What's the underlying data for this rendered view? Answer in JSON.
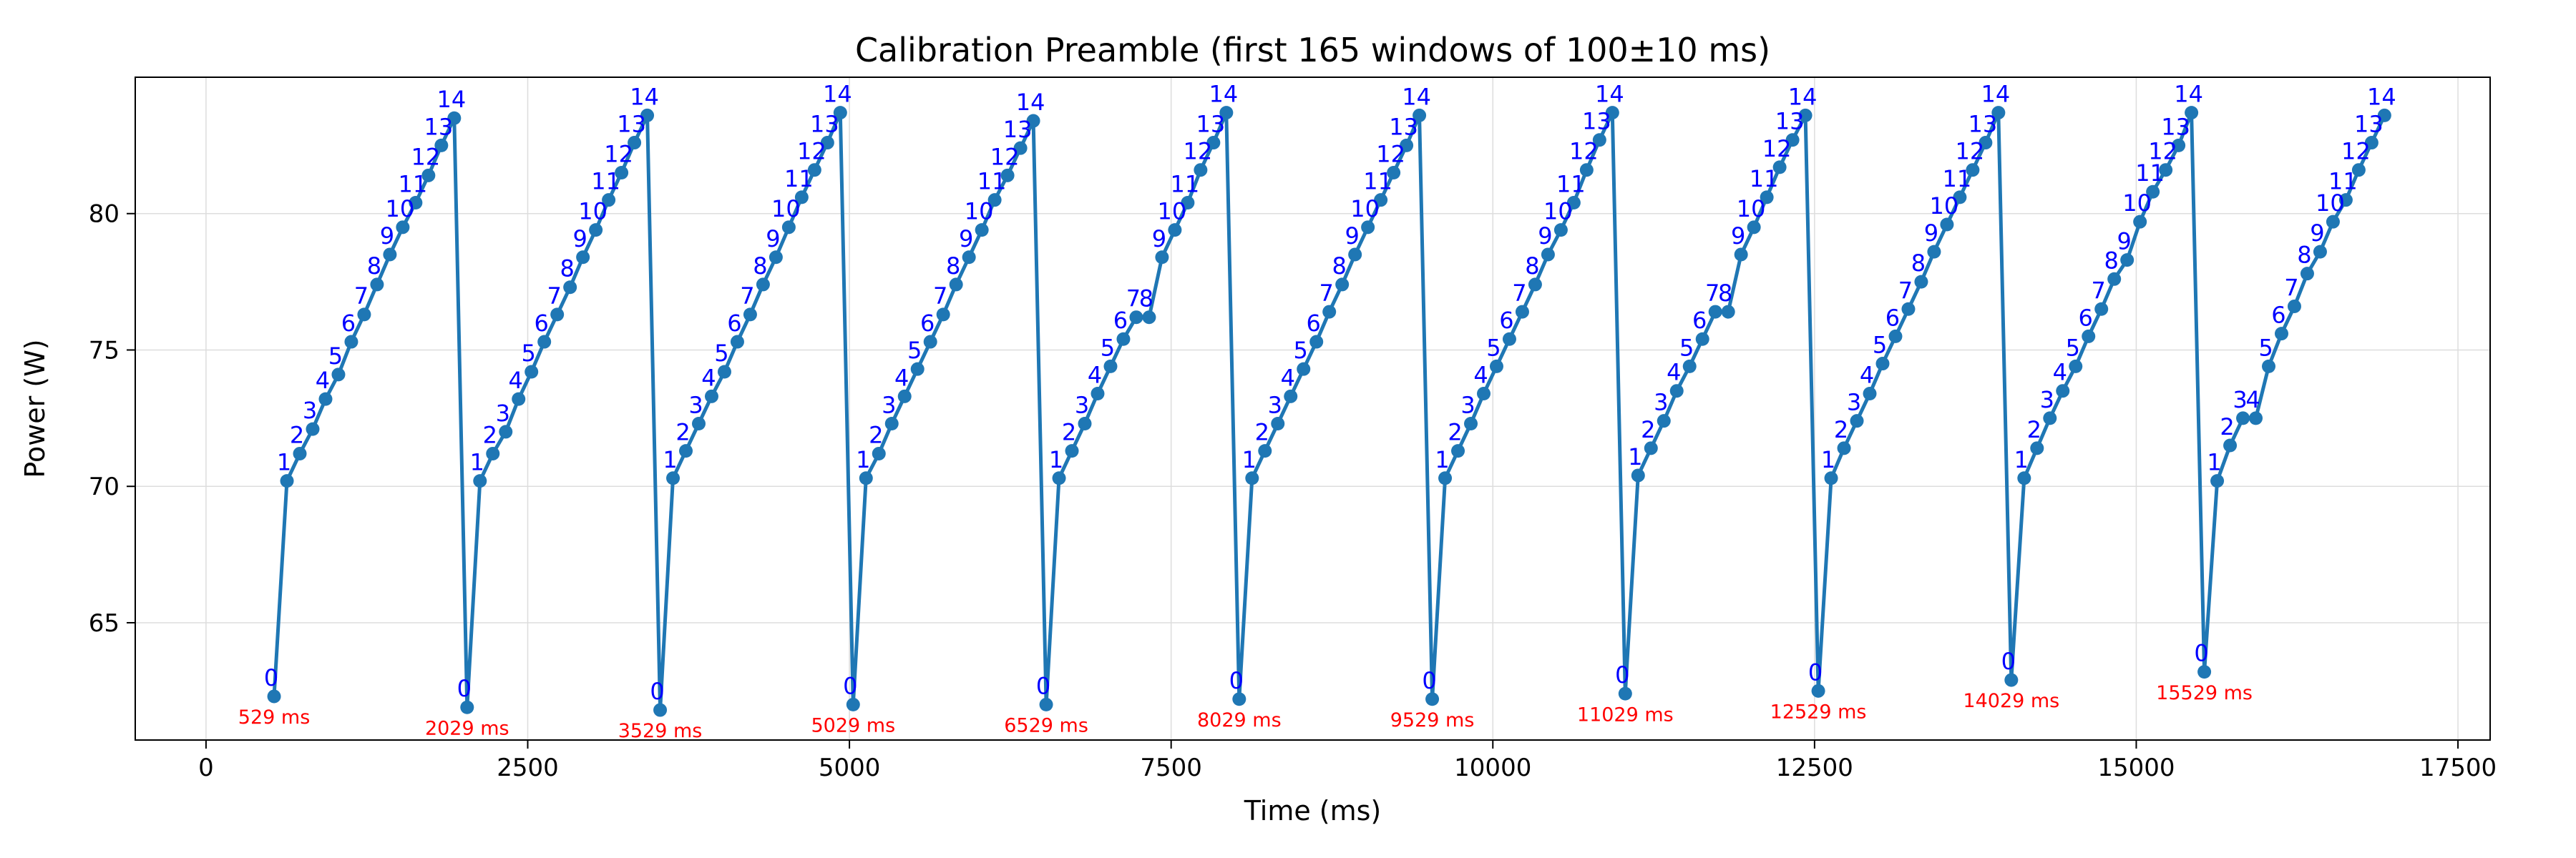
{
  "chart_data": {
    "type": "line",
    "title": "Calibration Preamble (first 165 windows of 100±10 ms)",
    "xlabel": "Time (ms)",
    "ylabel": "Power (W)",
    "xlim": [
      -550,
      17750
    ],
    "ylim": [
      60.7,
      85.0
    ],
    "xticks": [
      0,
      2500,
      5000,
      7500,
      10000,
      12500,
      15000,
      17500
    ],
    "yticks": [
      65,
      70,
      75,
      80
    ],
    "grid": true,
    "colors": {
      "line": "#1f77b4",
      "point_labels": "#0000ff",
      "start_labels": "#ff0000",
      "grid": "#dddddd"
    },
    "series": [
      {
        "x": [
          529,
          629,
          729,
          829,
          929,
          1029,
          1129,
          1229,
          1329,
          1429,
          1529,
          1629,
          1729,
          1829,
          1929
        ],
        "y": [
          62.3,
          70.2,
          71.2,
          72.1,
          73.2,
          74.1,
          75.3,
          76.3,
          77.4,
          78.5,
          79.5,
          80.4,
          81.4,
          82.5,
          83.5
        ],
        "labels": [
          "0",
          "1",
          "2",
          "3",
          "4",
          "5",
          "6",
          "7",
          "8",
          "9",
          "10",
          "11",
          "12",
          "13",
          "14"
        ]
      },
      {
        "x": [
          2029,
          2129,
          2229,
          2329,
          2429,
          2529,
          2629,
          2729,
          2829,
          2929,
          3029,
          3129,
          3229,
          3329,
          3429
        ],
        "y": [
          61.9,
          70.2,
          71.2,
          72.0,
          73.2,
          74.2,
          75.3,
          76.3,
          77.3,
          78.4,
          79.4,
          80.5,
          81.5,
          82.6,
          83.6
        ],
        "labels": [
          "0",
          "1",
          "2",
          "3",
          "4",
          "5",
          "6",
          "7",
          "8",
          "9",
          "10",
          "11",
          "12",
          "13",
          "14"
        ]
      },
      {
        "x": [
          3529,
          3629,
          3729,
          3829,
          3929,
          4029,
          4129,
          4229,
          4329,
          4429,
          4529,
          4629,
          4729,
          4829,
          4929
        ],
        "y": [
          61.8,
          70.3,
          71.3,
          72.3,
          73.3,
          74.2,
          75.3,
          76.3,
          77.4,
          78.4,
          79.5,
          80.6,
          81.6,
          82.6,
          83.7
        ],
        "labels": [
          "0",
          "1",
          "2",
          "3",
          "4",
          "5",
          "6",
          "7",
          "8",
          "9",
          "10",
          "11",
          "12",
          "13",
          "14"
        ]
      },
      {
        "x": [
          5029,
          5129,
          5229,
          5329,
          5429,
          5529,
          5629,
          5729,
          5829,
          5929,
          6029,
          6129,
          6229,
          6329,
          6429
        ],
        "y": [
          62.0,
          70.3,
          71.2,
          72.3,
          73.3,
          74.3,
          75.3,
          76.3,
          77.4,
          78.4,
          79.4,
          80.5,
          81.4,
          82.4,
          83.4
        ],
        "labels": [
          "0",
          "1",
          "2",
          "3",
          "4",
          "5",
          "6",
          "7",
          "8",
          "9",
          "10",
          "11",
          "12",
          "13",
          "14"
        ]
      },
      {
        "x": [
          6529,
          6629,
          6729,
          6829,
          6929,
          7029,
          7129,
          7229,
          7329,
          7429,
          7529,
          7629,
          7729,
          7829,
          7929
        ],
        "y": [
          62.0,
          70.3,
          71.3,
          72.3,
          73.4,
          74.4,
          75.4,
          76.2,
          76.2,
          78.4,
          79.4,
          80.4,
          81.6,
          82.6,
          83.7
        ],
        "labels": [
          "0",
          "1",
          "2",
          "3",
          "4",
          "5",
          "6",
          "7",
          "8",
          "9",
          "10",
          "11",
          "12",
          "13",
          "14"
        ]
      },
      {
        "x": [
          8029,
          8129,
          8229,
          8329,
          8429,
          8529,
          8629,
          8729,
          8829,
          8929,
          9029,
          9129,
          9229,
          9329,
          9429
        ],
        "y": [
          62.2,
          70.3,
          71.3,
          72.3,
          73.3,
          74.3,
          75.3,
          76.4,
          77.4,
          78.5,
          79.5,
          80.5,
          81.5,
          82.5,
          83.6
        ],
        "labels": [
          "0",
          "1",
          "2",
          "3",
          "4",
          "5",
          "6",
          "7",
          "8",
          "9",
          "10",
          "11",
          "12",
          "13",
          "14"
        ]
      },
      {
        "x": [
          9529,
          9629,
          9729,
          9829,
          9929,
          10029,
          10129,
          10229,
          10329,
          10429,
          10529,
          10629,
          10729,
          10829,
          10929
        ],
        "y": [
          62.2,
          70.3,
          71.3,
          72.3,
          73.4,
          74.4,
          75.4,
          76.4,
          77.4,
          78.5,
          79.4,
          80.4,
          81.6,
          82.7,
          83.7
        ],
        "labels": [
          "0",
          "1",
          "2",
          "3",
          "4",
          "5",
          "6",
          "7",
          "8",
          "9",
          "10",
          "11",
          "12",
          "13",
          "14"
        ]
      },
      {
        "x": [
          11029,
          11129,
          11229,
          11329,
          11429,
          11529,
          11629,
          11729,
          11829,
          11929,
          12029,
          12129,
          12229,
          12329,
          12429
        ],
        "y": [
          62.4,
          70.4,
          71.4,
          72.4,
          73.5,
          74.4,
          75.4,
          76.4,
          76.4,
          78.5,
          79.5,
          80.6,
          81.7,
          82.7,
          83.6
        ],
        "labels": [
          "0",
          "1",
          "2",
          "3",
          "4",
          "5",
          "6",
          "7",
          "8",
          "9",
          "10",
          "11",
          "12",
          "13",
          "14"
        ]
      },
      {
        "x": [
          12529,
          12629,
          12729,
          12829,
          12929,
          13029,
          13129,
          13229,
          13329,
          13429,
          13529,
          13629,
          13729,
          13829,
          13929
        ],
        "y": [
          62.5,
          70.3,
          71.4,
          72.4,
          73.4,
          74.5,
          75.5,
          76.5,
          77.5,
          78.6,
          79.6,
          80.6,
          81.6,
          82.6,
          83.7
        ],
        "labels": [
          "0",
          "1",
          "2",
          "3",
          "4",
          "5",
          "6",
          "7",
          "8",
          "9",
          "10",
          "11",
          "12",
          "13",
          "14"
        ]
      },
      {
        "x": [
          14029,
          14129,
          14229,
          14329,
          14429,
          14529,
          14629,
          14729,
          14829,
          14929,
          15029,
          15129,
          15229,
          15329,
          15429
        ],
        "y": [
          62.9,
          70.3,
          71.4,
          72.5,
          73.5,
          74.4,
          75.5,
          76.5,
          77.6,
          78.3,
          79.7,
          80.8,
          81.6,
          82.5,
          83.7
        ],
        "labels": [
          "0",
          "1",
          "2",
          "3",
          "4",
          "5",
          "6",
          "7",
          "8",
          "9",
          "10",
          "11",
          "12",
          "13",
          "14"
        ]
      },
      {
        "x": [
          15529,
          15629,
          15729,
          15829,
          15929,
          16029,
          16129,
          16229,
          16329,
          16429,
          16529,
          16629,
          16729,
          16829,
          16929
        ],
        "y": [
          63.2,
          70.2,
          71.5,
          72.5,
          72.5,
          74.4,
          75.6,
          76.6,
          77.8,
          78.6,
          79.7,
          80.5,
          81.6,
          82.6,
          83.6
        ],
        "labels": [
          "0",
          "1",
          "2",
          "3",
          "4",
          "5",
          "6",
          "7",
          "8",
          "9",
          "10",
          "11",
          "12",
          "13",
          "14"
        ]
      }
    ],
    "annotations": [
      {
        "x": 529,
        "y": 61.3,
        "text": "529 ms"
      },
      {
        "x": 2029,
        "y": 60.9,
        "text": "2029 ms"
      },
      {
        "x": 3529,
        "y": 60.8,
        "text": "3529 ms"
      },
      {
        "x": 5029,
        "y": 61.0,
        "text": "5029 ms"
      },
      {
        "x": 6529,
        "y": 61.0,
        "text": "6529 ms"
      },
      {
        "x": 8029,
        "y": 61.2,
        "text": "8029 ms"
      },
      {
        "x": 9529,
        "y": 61.2,
        "text": "9529 ms"
      },
      {
        "x": 11029,
        "y": 61.4,
        "text": "11029 ms"
      },
      {
        "x": 12529,
        "y": 61.5,
        "text": "12529 ms"
      },
      {
        "x": 14029,
        "y": 61.9,
        "text": "14029 ms"
      },
      {
        "x": 15529,
        "y": 62.2,
        "text": "15529 ms"
      }
    ]
  }
}
